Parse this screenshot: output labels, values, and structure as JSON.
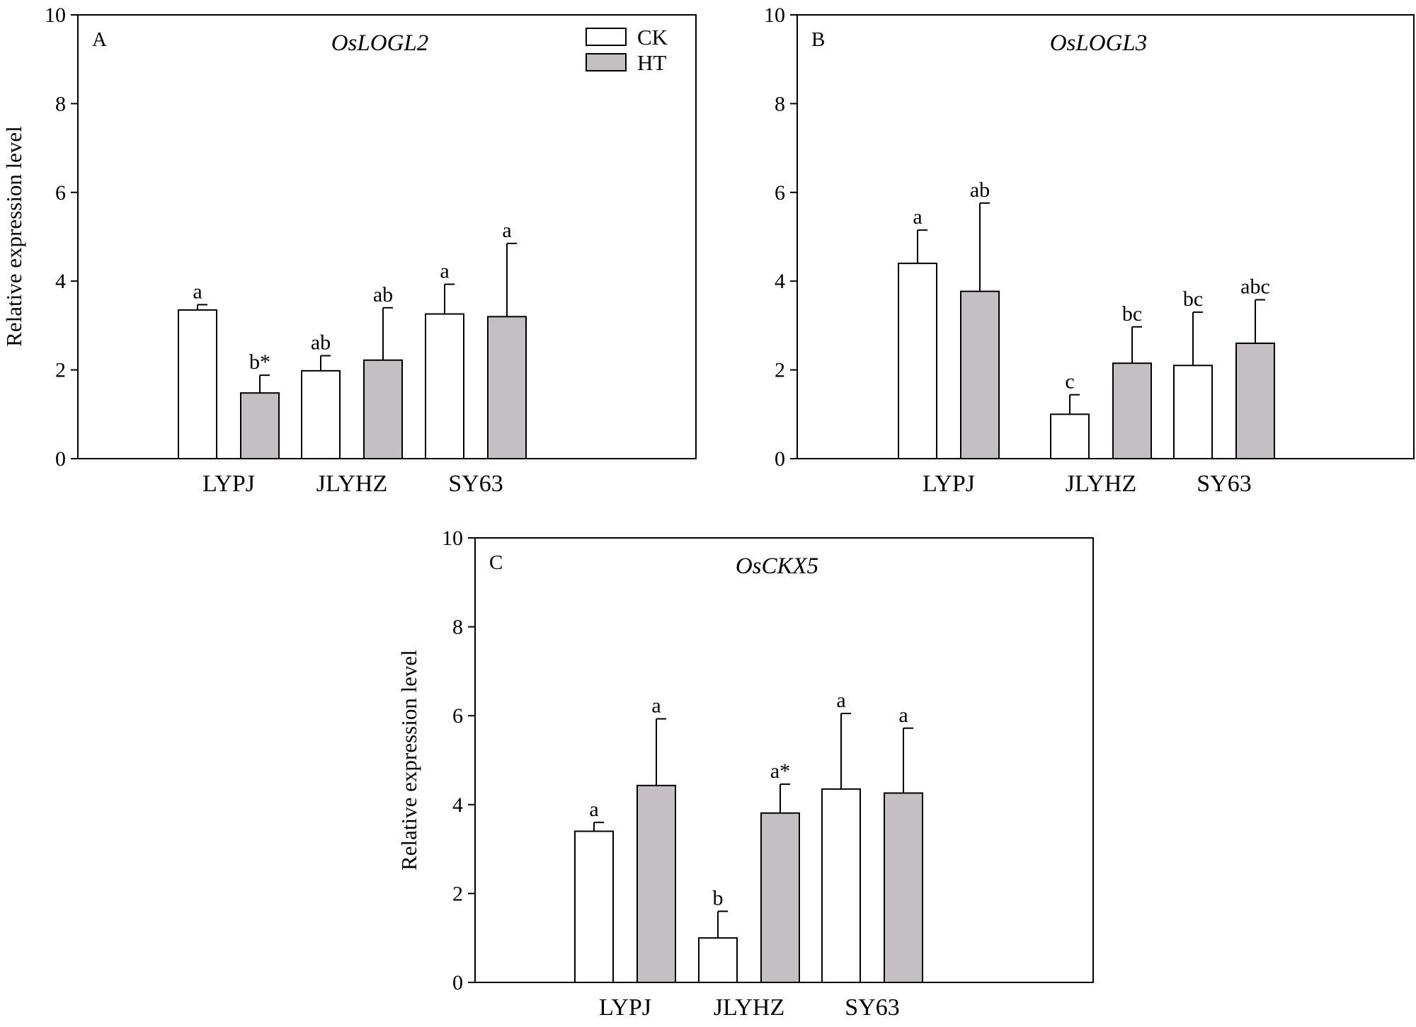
{
  "chart_data": [
    {
      "type": "bar",
      "panel": "A",
      "title": "OsLOGL2",
      "ylabel": "Relative expression level",
      "ylim": [
        0,
        10
      ],
      "yticks": [
        "0",
        "2",
        "4",
        "6",
        "8",
        "10"
      ],
      "categories": [
        "LYPJ",
        "JLYHZ",
        "SY63"
      ],
      "show_legend": true,
      "legend_position": "top-right",
      "series": [
        {
          "name": "CK",
          "color": "#ffffff",
          "values": [
            3.35,
            1.98,
            3.26
          ],
          "errors": [
            0.12,
            0.34,
            0.67
          ],
          "labels": [
            "a",
            "ab",
            "a"
          ]
        },
        {
          "name": "HT",
          "color": "#c4bfc2",
          "values": [
            1.48,
            2.22,
            3.2
          ],
          "errors": [
            0.4,
            1.18,
            1.65
          ],
          "labels": [
            "b*",
            "ab",
            "a"
          ]
        }
      ]
    },
    {
      "type": "bar",
      "panel": "B",
      "title": "OsLOGL3",
      "ylabel": "",
      "ylim": [
        0,
        10
      ],
      "yticks": [
        "0",
        "2",
        "4",
        "6",
        "8",
        "10"
      ],
      "categories": [
        "LYPJ",
        "JLYHZ",
        "SY63"
      ],
      "show_legend": false,
      "series": [
        {
          "name": "CK",
          "color": "#ffffff",
          "values": [
            4.4,
            1.0,
            2.1
          ],
          "errors": [
            0.75,
            0.44,
            1.2
          ],
          "labels": [
            "a",
            "c",
            "bc"
          ]
        },
        {
          "name": "HT",
          "color": "#c4bfc2",
          "values": [
            3.77,
            2.15,
            2.6
          ],
          "errors": [
            1.99,
            0.82,
            0.98
          ],
          "labels": [
            "ab",
            "bc",
            "abc"
          ]
        }
      ]
    },
    {
      "type": "bar",
      "panel": "C",
      "title": "OsCKX5",
      "ylabel": "Relative expression level",
      "ylim": [
        0,
        10
      ],
      "yticks": [
        "0",
        "2",
        "4",
        "6",
        "8",
        "10"
      ],
      "categories": [
        "LYPJ",
        "JLYHZ",
        "SY63"
      ],
      "show_legend": false,
      "series": [
        {
          "name": "CK",
          "color": "#ffffff",
          "values": [
            3.4,
            1.0,
            4.35
          ],
          "errors": [
            0.2,
            0.6,
            1.7
          ],
          "labels": [
            "a",
            "b",
            "a"
          ]
        },
        {
          "name": "HT",
          "color": "#c4bfc2",
          "values": [
            4.43,
            3.81,
            4.26
          ],
          "errors": [
            1.5,
            0.65,
            1.46
          ],
          "labels": [
            "a",
            "a*",
            "a"
          ]
        }
      ]
    }
  ]
}
